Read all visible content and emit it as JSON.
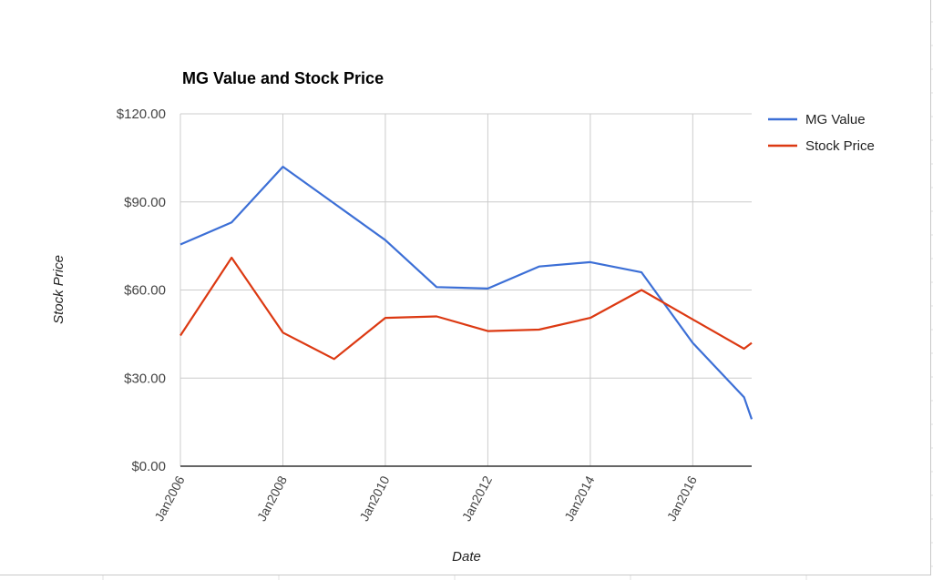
{
  "chart_data": {
    "type": "line",
    "title": "MG Value and Stock Price",
    "xlabel": "Date",
    "ylabel": "Stock Price",
    "ylim": [
      0,
      120
    ],
    "yticks": [
      "$0.00",
      "$30.00",
      "$60.00",
      "$90.00",
      "$120.00"
    ],
    "ytick_values": [
      0,
      30,
      60,
      90,
      120
    ],
    "xticks": [
      "Jan2006",
      "Jan2008",
      "Jan2010",
      "Jan2012",
      "Jan2014",
      "Jan2016"
    ],
    "xtick_years": [
      2006,
      2008,
      2010,
      2012,
      2014,
      2016
    ],
    "xlim": [
      2006,
      2017.15
    ],
    "grid": true,
    "legend_position": "right",
    "x": [
      2006,
      2007,
      2008,
      2009,
      2010,
      2011,
      2012,
      2013,
      2014,
      2015,
      2016,
      2017,
      2017.15
    ],
    "series": [
      {
        "name": "MG Value",
        "color": "#3c6fd6",
        "values": [
          75.5,
          83,
          102,
          89.5,
          77,
          61,
          60.5,
          68,
          69.5,
          66,
          42,
          23.5,
          16
        ]
      },
      {
        "name": "Stock Price",
        "color": "#dc3912",
        "values": [
          44.5,
          71,
          45.5,
          36.5,
          50.5,
          51,
          46,
          46.5,
          50.5,
          60,
          50,
          40,
          42
        ]
      }
    ]
  }
}
